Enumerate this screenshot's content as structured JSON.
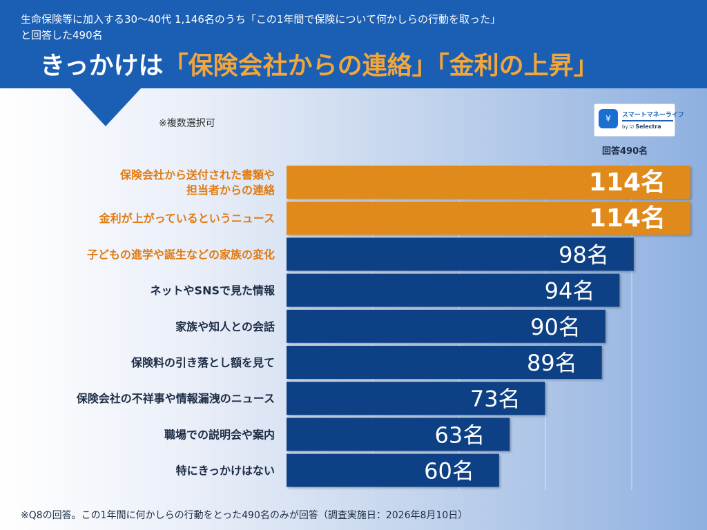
{
  "header": {
    "subtitle_line1": "生命保険等に加入する30〜40代 1,146名のうち「この1年間で保険について何かしらの行動を取った」",
    "subtitle_line2": "と回答した490名",
    "headline_prefix": "きっかけは",
    "headline_highlight": "「保険会社からの連絡」「金利の上昇",
    "headline_suffix": "」"
  },
  "note_multi": "※複数選択可",
  "logo": {
    "name": "スマートマネーライフ",
    "by": "by",
    "brand": "Selectra",
    "icon": "piggy-bank-icon"
  },
  "respondents": "回答490名",
  "footer_note": "※Q8の回答。この1年間に何かしらの行動をとった490名のみが回答（調査実施日：2026年8月10日）",
  "colors": {
    "header_bg": "#1a5fb4",
    "highlight_text": "#f2a63b",
    "bar_highlight": "#e08a1e",
    "bar_default": "#0e3f84",
    "label_highlight": "#e07b12",
    "label_default": "#1c2c44"
  },
  "chart_data": {
    "type": "bar",
    "orientation": "horizontal",
    "unit": "名",
    "categories": [
      [
        "保険会社から送付された書類や",
        "担当者からの連絡"
      ],
      [
        "金利が上がっているというニュース"
      ],
      [
        "子どもの進学や誕生などの家族の変化"
      ],
      [
        "ネットやSNSで見た情報"
      ],
      [
        "家族や知人との会話"
      ],
      [
        "保険料の引き落とし額を見て"
      ],
      [
        "保険会社の不祥事や情報漏洩のニュース"
      ],
      [
        "職場での説明会や案内"
      ],
      [
        "特にきっかけはない"
      ]
    ],
    "values": [
      114,
      114,
      98,
      94,
      90,
      89,
      73,
      63,
      60
    ],
    "highlight": [
      true,
      true,
      true,
      false,
      false,
      false,
      false,
      false,
      false
    ],
    "bar_highlight": [
      true,
      true,
      false,
      false,
      false,
      false,
      false,
      false,
      false
    ],
    "xlim": [
      0,
      114
    ],
    "grid": true
  }
}
